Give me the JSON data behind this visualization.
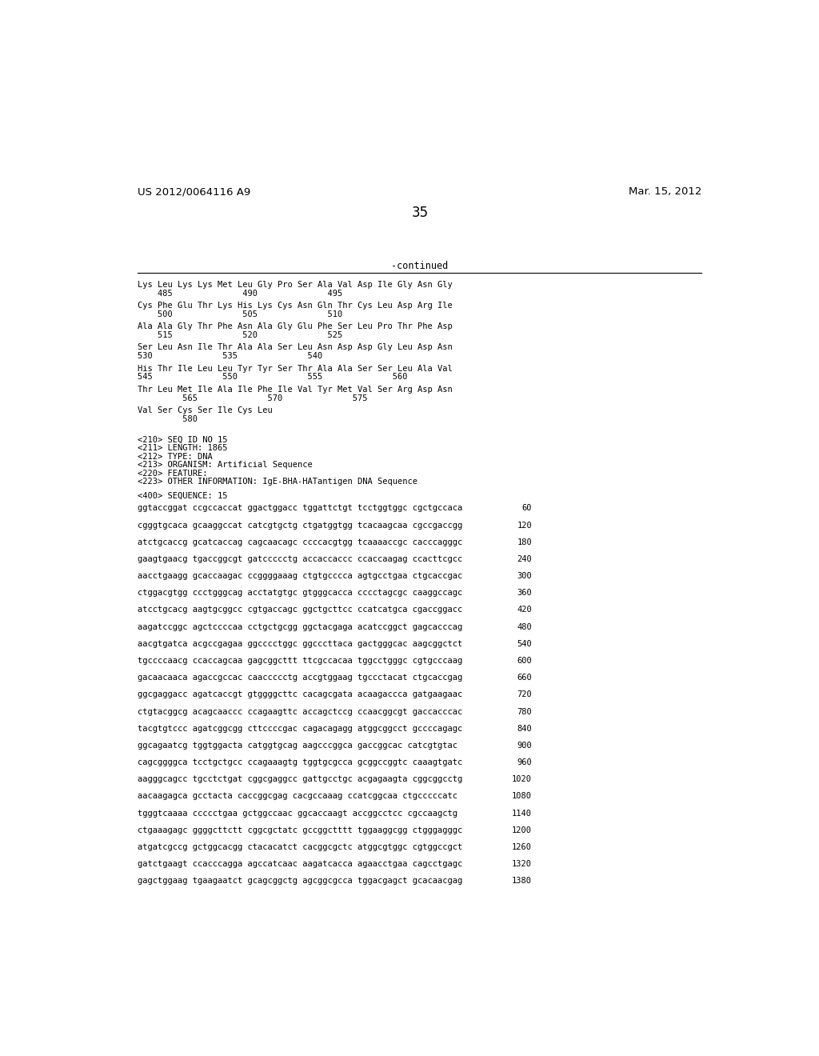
{
  "header_left": "US 2012/0064116 A9",
  "header_right": "Mar. 15, 2012",
  "page_number": "35",
  "continued_label": "-continued",
  "background_color": "#ffffff",
  "text_color": "#000000",
  "aa_blocks": [
    {
      "seq": "Lys Leu Lys Lys Met Leu Gly Pro Ser Ala Val Asp Ile Gly Asn Gly",
      "nums": "    485              490              495"
    },
    {
      "seq": "Cys Phe Glu Thr Lys His Lys Cys Asn Gln Thr Cys Leu Asp Arg Ile",
      "nums": "    500              505              510"
    },
    {
      "seq": "Ala Ala Gly Thr Phe Asn Ala Gly Glu Phe Ser Leu Pro Thr Phe Asp",
      "nums": "    515              520              525"
    },
    {
      "seq": "Ser Leu Asn Ile Thr Ala Ala Ser Leu Asn Asp Asp Gly Leu Asp Asn",
      "nums": "530              535              540"
    },
    {
      "seq": "His Thr Ile Leu Leu Tyr Tyr Ser Thr Ala Ala Ser Ser Leu Ala Val",
      "nums": "545              550              555              560"
    },
    {
      "seq": "Thr Leu Met Ile Ala Ile Phe Ile Val Tyr Met Val Ser Arg Asp Asn",
      "nums": "         565              570              575"
    },
    {
      "seq": "Val Ser Cys Ser Ile Cys Leu",
      "nums": "         580"
    }
  ],
  "seq_info": [
    "<210> SEQ ID NO 15",
    "<211> LENGTH: 1865",
    "<212> TYPE: DNA",
    "<213> ORGANISM: Artificial Sequence",
    "<220> FEATURE:",
    "<223> OTHER INFORMATION: IgE-BHA-HATantigen DNA Sequence"
  ],
  "sequence_label": "<400> SEQUENCE: 15",
  "dna_lines": [
    [
      "ggtaccggat ccgccaccat ggactggacc tggattctgt tcctggtggc cgctgccaca",
      "60"
    ],
    [
      "cgggtgcaca gcaaggccat catcgtgctg ctgatggtgg tcacaagcaa cgccgaccgg",
      "120"
    ],
    [
      "atctgcaccg gcatcaccag cagcaacagc ccccacgtgg tcaaaaccgc cacccagggc",
      "180"
    ],
    [
      "gaagtgaacg tgaccggcgt gatccccctg accaccaccc ccaccaagag ccacttcgcc",
      "240"
    ],
    [
      "aacctgaagg gcaccaagac ccggggaaag ctgtgcccca agtgcctgaa ctgcaccgac",
      "300"
    ],
    [
      "ctggacgtgg ccctgggcag acctatgtgc gtgggcacca cccctagcgc caaggccagc",
      "360"
    ],
    [
      "atcctgcacg aagtgcggcc cgtgaccagc ggctgcttcc ccatcatgca cgaccggacc",
      "420"
    ],
    [
      "aagatccggc agctccccaa cctgctgcgg ggctacgaga acatccggct gagcacccag",
      "480"
    ],
    [
      "aacgtgatca acgccgagaa ggcccctggc ggcccttaca gactgggcac aagcggctct",
      "540"
    ],
    [
      "tgccccaacg ccaccagcaa gagcggcttt ttcgccacaa tggcctgggc cgtgcccaag",
      "600"
    ],
    [
      "gacaacaaca agaccgccac caaccccctg accgtggaag tgccctacat ctgcaccgag",
      "660"
    ],
    [
      "ggcgaggacc agatcaccgt gtggggcttc cacagcgata acaagaccca gatgaagaac",
      "720"
    ],
    [
      "ctgtacggcg acagcaaccc ccagaagttc accagctccg ccaacggcgt gaccacccac",
      "780"
    ],
    [
      "tacgtgtccc agatcggcgg cttccccgac cagacagagg atggcggcct gccccagagc",
      "840"
    ],
    [
      "ggcagaatcg tggtggacta catggtgcag aagcccggca gaccggcac catcgtgtac",
      "900"
    ],
    [
      "cagcggggca tcctgctgcc ccagaaagtg tggtgcgcca gcggccggtc caaagtgatc",
      "960"
    ],
    [
      "aagggcagcc tgcctctgat cggcgaggcc gattgcctgc acgagaagta cggcggcctg",
      "1020"
    ],
    [
      "aacaagagca gcctacta caccggcgag cacgccaaag ccatcggcaa ctgcccccatc",
      "1080"
    ],
    [
      "tgggtcaaaa ccccctgaa gctggccaac ggcaccaagt accggcctcc cgccaagctg",
      "1140"
    ],
    [
      "ctgaaagagc ggggcttctt cggcgctatc gccggctttt tggaaggcgg ctgggagggc",
      "1200"
    ],
    [
      "atgatcgccg gctggcacgg ctacacatct cacggcgctc atggcgtggc cgtggccgct",
      "1260"
    ],
    [
      "gatctgaagt ccacccagga agccatcaac aagatcacca agaacctgaa cagcctgagc",
      "1320"
    ],
    [
      "gagctggaag tgaagaatct gcagcggctg agcggcgcca tggacgagct gcacaacgag",
      "1380"
    ]
  ]
}
